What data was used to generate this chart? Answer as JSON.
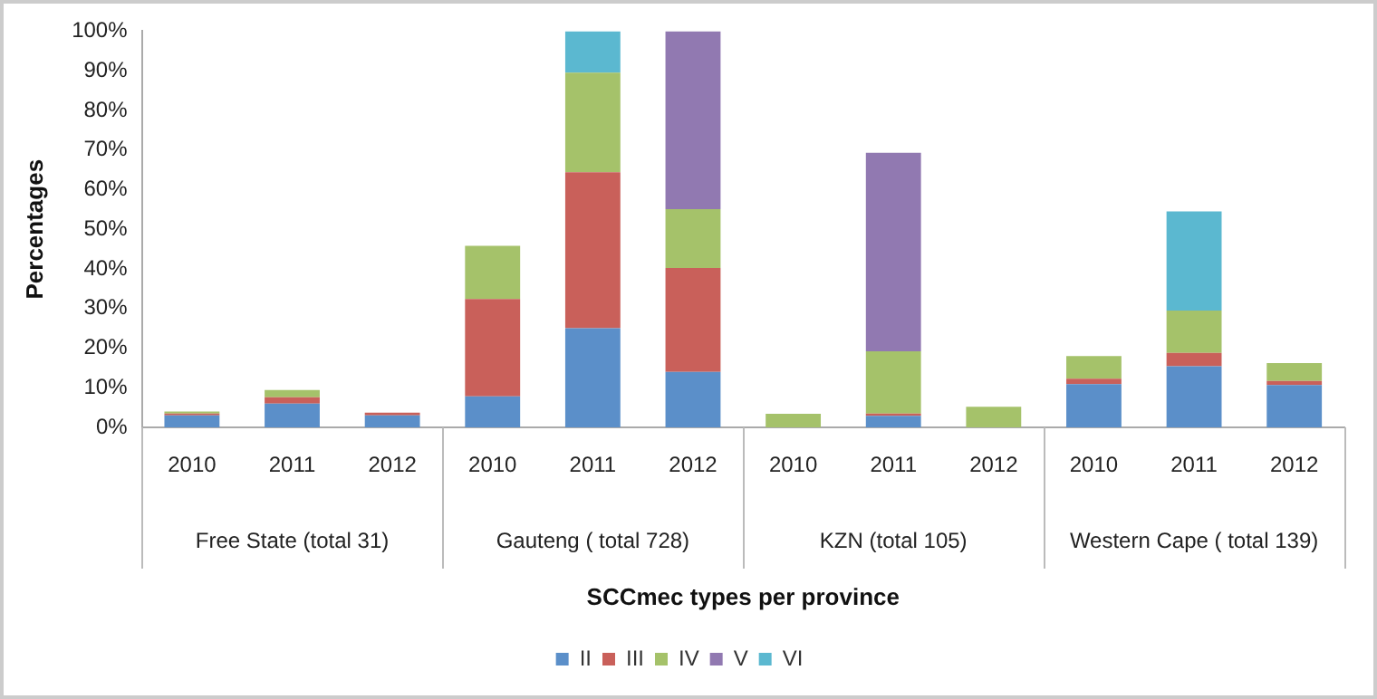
{
  "chart_data": {
    "type": "bar",
    "stacked": true,
    "ylabel": "Percentages",
    "xlabel": "SCCmec types per province",
    "categories": [
      "2010",
      "2011",
      "2012",
      "2010",
      "2011",
      "2012",
      "2010",
      "2011",
      "2012",
      "2010",
      "2011",
      "2012"
    ],
    "annotations": [
      "Free State (total 31)",
      "Gauteng ( total 728)",
      "KZN (total 105)",
      "Western Cape ( total 139)"
    ],
    "series": [
      {
        "name": "II",
        "color": "#5b8fc9",
        "values": [
          3,
          6,
          3,
          7.8,
          25,
          14,
          null,
          2.9,
          null,
          10.9,
          15.4,
          10.7
        ]
      },
      {
        "name": "III",
        "color": "#c9605a",
        "values": [
          0.5,
          1.6,
          0.7,
          24.6,
          39.4,
          26.2,
          null,
          0.6,
          null,
          1.4,
          3.4,
          1
        ]
      },
      {
        "name": "IV",
        "color": "#a5c26a",
        "values": [
          0.5,
          1.8,
          null,
          13.4,
          25.1,
          14.9,
          3.4,
          15.7,
          5.2,
          5.7,
          10.7,
          4.5
        ]
      },
      {
        "name": "V",
        "color": "#9179b1",
        "values": [
          null,
          null,
          null,
          null,
          null,
          44.9,
          null,
          50.1,
          null,
          null,
          null,
          null
        ]
      },
      {
        "name": "VI",
        "color": "#5bb8d0",
        "values": [
          null,
          null,
          null,
          null,
          10.5,
          null,
          null,
          null,
          null,
          null,
          25,
          null
        ]
      }
    ],
    "ylim": [
      0,
      100
    ],
    "yticks": [
      {
        "value": 0,
        "label": "0%"
      },
      {
        "value": 10,
        "label": "10%"
      },
      {
        "value": 20,
        "label": "20%"
      },
      {
        "value": 30,
        "label": "30%"
      },
      {
        "value": 40,
        "label": "40%"
      },
      {
        "value": 50,
        "label": "50%"
      },
      {
        "value": 60,
        "label": "60%"
      },
      {
        "value": 70,
        "label": "70%"
      },
      {
        "value": 80,
        "label": "80%"
      },
      {
        "value": 90,
        "label": "90%"
      },
      {
        "value": 100,
        "label": "100%"
      }
    ],
    "grid": false,
    "legend": "bottom"
  }
}
